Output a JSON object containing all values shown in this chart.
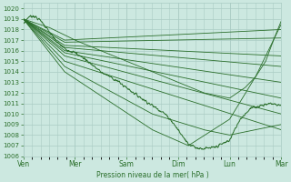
{
  "xlabel": "Pression niveau de la mer( hPa )",
  "ylim": [
    1006,
    1020.5
  ],
  "yticks": [
    1006,
    1007,
    1008,
    1009,
    1010,
    1011,
    1012,
    1013,
    1014,
    1015,
    1016,
    1017,
    1018,
    1019,
    1020
  ],
  "xtick_labels": [
    "Ven",
    "Mer",
    "Sam",
    "Dim",
    "Lun",
    "Mar"
  ],
  "xtick_positions": [
    0,
    1,
    2,
    3,
    4,
    5
  ],
  "xlim": [
    0,
    5
  ],
  "background_color": "#cce8e0",
  "grid_color": "#aaccC4",
  "line_color": "#2a6e2a",
  "forecast_lines": [
    {
      "waypoints_x": [
        0.0,
        0.8,
        5.0
      ],
      "waypoints_y": [
        1019.0,
        1017.0,
        1018.0
      ]
    },
    {
      "waypoints_x": [
        0.0,
        0.8,
        5.0
      ],
      "waypoints_y": [
        1019.0,
        1016.8,
        1017.2
      ]
    },
    {
      "waypoints_x": [
        0.0,
        0.8,
        5.0
      ],
      "waypoints_y": [
        1019.0,
        1016.5,
        1015.5
      ]
    },
    {
      "waypoints_x": [
        0.0,
        0.8,
        5.0
      ],
      "waypoints_y": [
        1019.0,
        1016.3,
        1014.5
      ]
    },
    {
      "waypoints_x": [
        0.0,
        0.8,
        5.0
      ],
      "waypoints_y": [
        1019.0,
        1016.0,
        1013.0
      ]
    },
    {
      "waypoints_x": [
        0.0,
        0.8,
        5.0
      ],
      "waypoints_y": [
        1019.0,
        1015.8,
        1011.5
      ]
    },
    {
      "waypoints_x": [
        0.0,
        0.8,
        5.0
      ],
      "waypoints_y": [
        1019.0,
        1015.5,
        1010.0
      ]
    },
    {
      "waypoints_x": [
        0.0,
        0.8,
        5.0
      ],
      "waypoints_y": [
        1019.0,
        1015.0,
        1008.5
      ]
    },
    {
      "waypoints_x": [
        0.0,
        0.8,
        2.5,
        3.5,
        4.0,
        5.0
      ],
      "waypoints_y": [
        1019.0,
        1014.5,
        1010.0,
        1008.5,
        1008.0,
        1009.0
      ]
    },
    {
      "waypoints_x": [
        0.0,
        0.8,
        2.5,
        3.2,
        4.0,
        4.5,
        5.0
      ],
      "waypoints_y": [
        1019.0,
        1014.0,
        1008.5,
        1007.0,
        1009.5,
        1013.5,
        1018.5
      ]
    }
  ],
  "observed_waypoints_x": [
    0.0,
    0.1,
    0.2,
    0.35,
    0.5,
    0.65,
    0.8,
    1.0,
    1.2,
    1.5,
    1.8,
    2.0,
    2.2,
    2.5,
    2.7,
    2.85,
    3.0,
    3.1,
    3.2,
    3.35,
    3.5,
    3.7,
    4.0,
    4.2,
    4.4,
    4.6,
    4.8,
    5.0
  ],
  "observed_waypoints_y": [
    1018.5,
    1019.2,
    1019.3,
    1018.8,
    1017.8,
    1016.8,
    1016.2,
    1015.8,
    1015.2,
    1014.0,
    1013.2,
    1012.5,
    1011.8,
    1010.8,
    1010.2,
    1009.5,
    1008.5,
    1007.8,
    1007.2,
    1006.8,
    1006.7,
    1006.8,
    1007.5,
    1009.5,
    1010.5,
    1010.8,
    1011.0,
    1010.8
  ],
  "lun_line_waypoints_x": [
    0.0,
    0.5,
    1.0,
    2.0,
    3.0,
    3.5,
    4.0,
    4.3,
    4.5,
    4.7,
    4.85,
    5.0
  ],
  "lun_line_waypoints_y": [
    1019.0,
    1018.2,
    1017.0,
    1015.0,
    1013.0,
    1012.0,
    1011.5,
    1012.5,
    1013.5,
    1015.0,
    1017.0,
    1018.8
  ]
}
